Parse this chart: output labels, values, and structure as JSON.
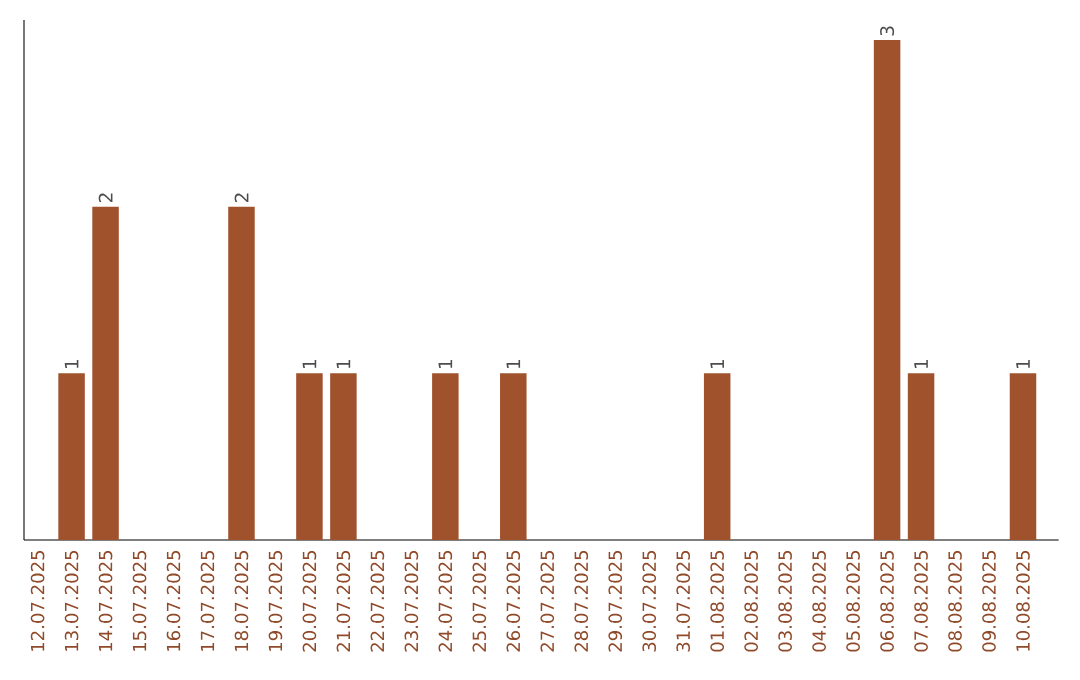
{
  "chart_data": {
    "type": "bar",
    "categories": [
      "12.07.2025",
      "13.07.2025",
      "14.07.2025",
      "15.07.2025",
      "16.07.2025",
      "17.07.2025",
      "18.07.2025",
      "19.07.2025",
      "20.07.2025",
      "21.07.2025",
      "22.07.2025",
      "23.07.2025",
      "24.07.2025",
      "25.07.2025",
      "26.07.2025",
      "27.07.2025",
      "28.07.2025",
      "29.07.2025",
      "30.07.2025",
      "31.07.2025",
      "01.08.2025",
      "02.08.2025",
      "03.08.2025",
      "04.08.2025",
      "05.08.2025",
      "06.08.2025",
      "07.08.2025",
      "08.08.2025",
      "09.08.2025",
      "10.08.2025"
    ],
    "values": [
      0,
      1,
      2,
      0,
      0,
      0,
      2,
      0,
      1,
      1,
      0,
      0,
      1,
      0,
      1,
      0,
      0,
      0,
      0,
      0,
      1,
      0,
      0,
      0,
      0,
      3,
      1,
      0,
      0,
      1
    ],
    "value_labels": [
      null,
      "1",
      "2",
      null,
      null,
      null,
      "2",
      null,
      "1",
      "1",
      null,
      null,
      "1",
      null,
      "1",
      null,
      null,
      null,
      null,
      null,
      "1",
      null,
      null,
      null,
      null,
      "3",
      "1",
      null,
      null,
      "1"
    ],
    "color": "#a0522d"
  }
}
